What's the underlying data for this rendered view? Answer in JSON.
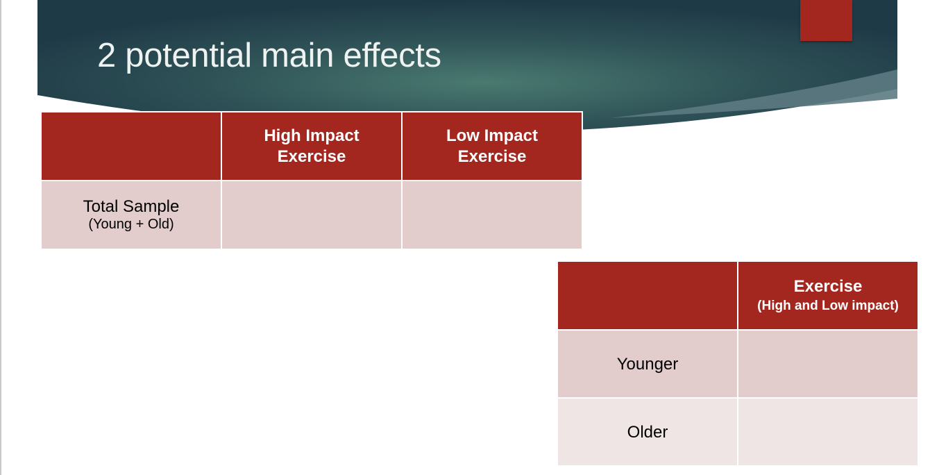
{
  "slide": {
    "title": "2 potential main effects",
    "colors": {
      "header_dark": "#1f3a47",
      "header_mid": "#4a7a70",
      "accent": "#a3271f",
      "row_light": "#e2cccc",
      "row_lighter": "#efe5e5"
    }
  },
  "table1": {
    "headers": [
      "",
      "High Impact Exercise",
      "Low Impact Exercise"
    ],
    "rows": [
      {
        "label": "Total Sample",
        "sublabel": "(Young + Old)",
        "cells": [
          "",
          ""
        ]
      }
    ]
  },
  "table2": {
    "headers": [
      {
        "label": "",
        "sublabel": ""
      },
      {
        "label": "Exercise",
        "sublabel": "(High and Low impact)"
      }
    ],
    "rows": [
      {
        "label": "Younger",
        "cells": [
          ""
        ]
      },
      {
        "label": "Older",
        "cells": [
          ""
        ]
      }
    ]
  }
}
